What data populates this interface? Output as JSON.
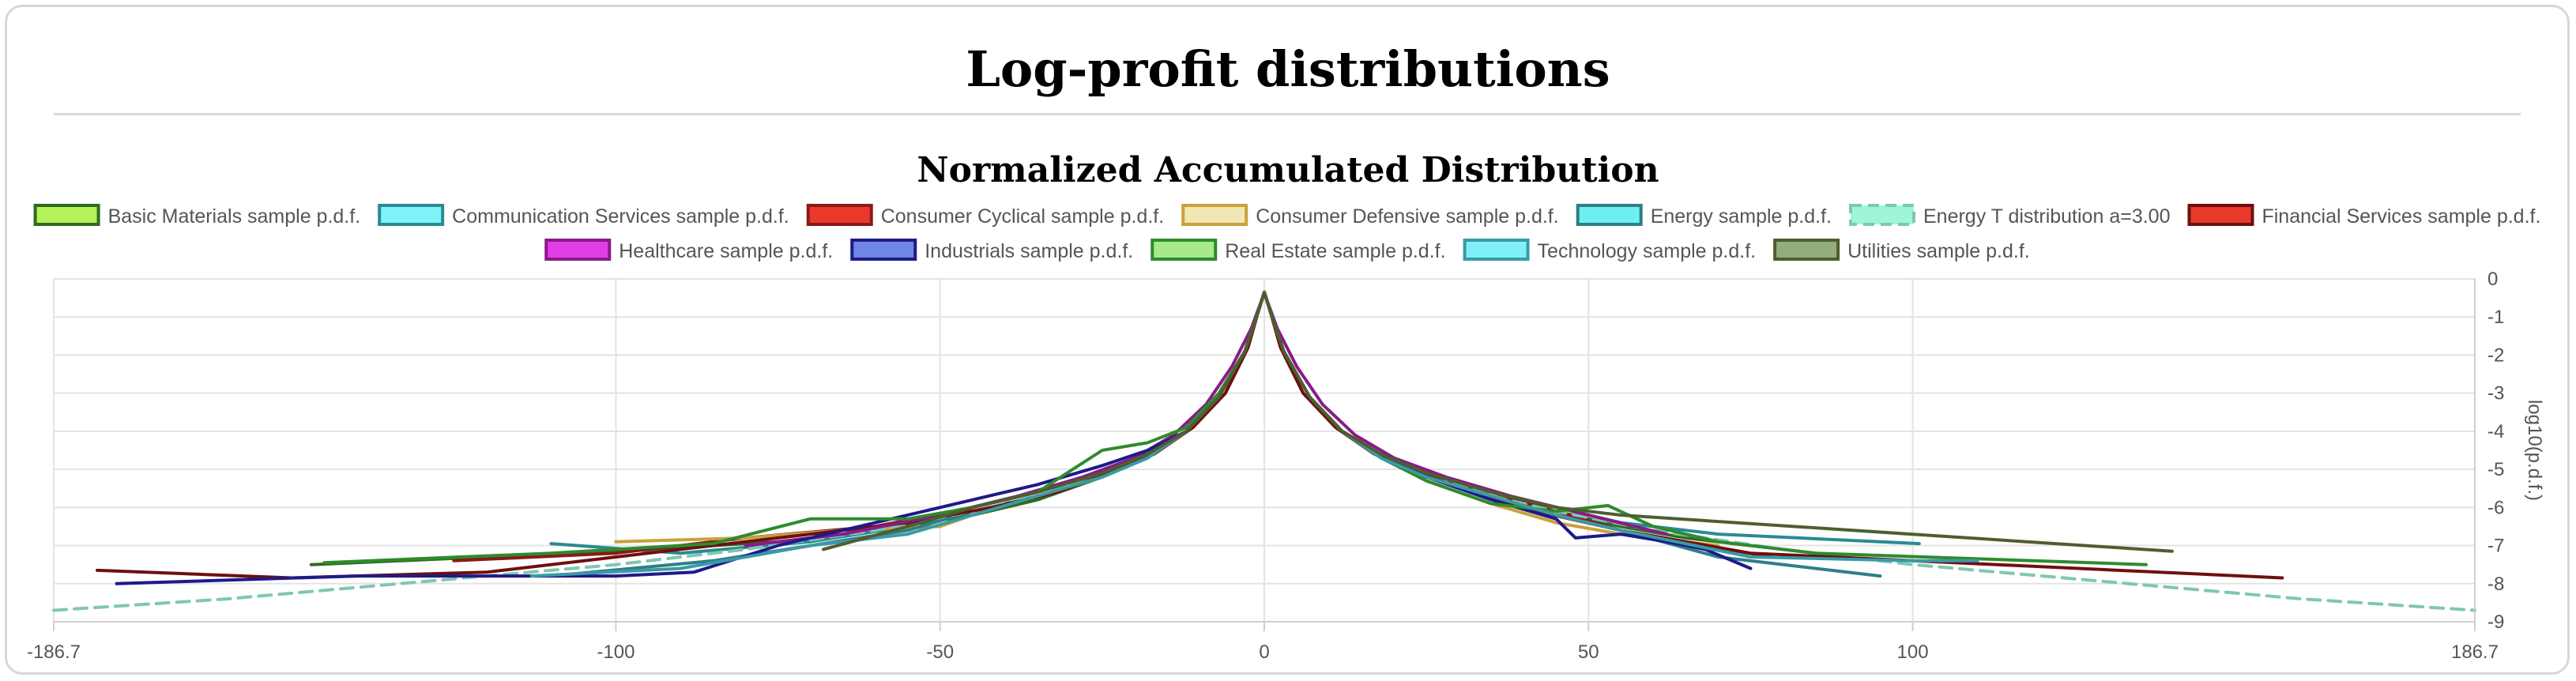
{
  "page": {
    "title": "Log-profit distributions"
  },
  "chart_data": {
    "type": "line",
    "title": "Normalized Accumulated Distribution",
    "xlabel": "",
    "ylabel": "log10(p.d.f.)",
    "xlim": [
      -186.7,
      186.7
    ],
    "ylim": [
      -9,
      0
    ],
    "x_tick_labels": [
      "-186.7",
      "-100",
      "-50",
      "0",
      "50",
      "100",
      "186.7"
    ],
    "x_ticks": [
      -186.7,
      -100,
      -50,
      0,
      50,
      100,
      186.7
    ],
    "y_ticks": [
      0,
      -1,
      -2,
      -3,
      -4,
      -5,
      -6,
      -7,
      -8,
      -9
    ],
    "grid": true,
    "legend_position": "top",
    "series": [
      {
        "name": "Basic Materials sample p.d.f.",
        "color": "#2f6b1f",
        "fill": "#b6f35a",
        "dash": false,
        "x": [
          -147,
          -120,
          -95,
          -75,
          -60,
          -45,
          -35,
          -25,
          -18,
          -12,
          -7,
          -3,
          -1,
          0,
          1,
          3,
          7,
          12,
          18,
          25,
          35,
          45,
          55,
          65,
          75,
          85
        ],
        "y": [
          -7.5,
          -7.3,
          -7.1,
          -6.9,
          -6.6,
          -6.2,
          -5.8,
          -5.2,
          -4.7,
          -4.0,
          -3.1,
          -1.9,
          -0.9,
          -0.35,
          -0.9,
          -1.9,
          -3.1,
          -4.0,
          -4.7,
          -5.2,
          -5.7,
          -6.1,
          -6.5,
          -6.8,
          -7.0,
          -7.2
        ]
      },
      {
        "name": "Communication Services sample p.d.f.",
        "color": "#2a8a94",
        "fill": "#7df3f8",
        "dash": false,
        "x": [
          -110,
          -90,
          -70,
          -55,
          -45,
          -35,
          -25,
          -18,
          -12,
          -7,
          -3,
          -1,
          0,
          1,
          3,
          7,
          12,
          18,
          25,
          35,
          45,
          55,
          70,
          101
        ],
        "y": [
          -6.95,
          -7.2,
          -6.9,
          -6.5,
          -6.0,
          -5.6,
          -5.1,
          -4.6,
          -4.0,
          -3.1,
          -1.9,
          -0.9,
          -0.35,
          -0.9,
          -1.9,
          -3.1,
          -4.0,
          -4.6,
          -5.1,
          -5.6,
          -6.0,
          -6.4,
          -6.7,
          -6.95
        ]
      },
      {
        "name": "Consumer Cyclical sample p.d.f.",
        "color": "#8b1a1a",
        "fill": "#e8392b",
        "dash": false,
        "x": [
          -125,
          -100,
          -80,
          -60,
          -45,
          -35,
          -25,
          -18,
          -12,
          -7,
          -3,
          -1,
          0,
          1,
          3,
          7,
          12,
          18,
          25,
          35,
          45,
          55,
          65,
          78
        ],
        "y": [
          -7.4,
          -7.2,
          -6.8,
          -6.5,
          -6.0,
          -5.6,
          -5.1,
          -4.6,
          -4.0,
          -3.1,
          -1.9,
          -0.9,
          -0.35,
          -0.9,
          -1.9,
          -3.1,
          -4.0,
          -4.6,
          -5.2,
          -5.6,
          -6.1,
          -6.6,
          -6.9,
          -7.3
        ]
      },
      {
        "name": "Consumer Defensive sample p.d.f.",
        "color": "#c9a23a",
        "fill": "#f2e6b4",
        "dash": false,
        "x": [
          -100,
          -80,
          -65,
          -50,
          -40,
          -32,
          -25,
          -18,
          -12,
          -7,
          -3,
          -1,
          0,
          1,
          3,
          7,
          12,
          18,
          25,
          35,
          45,
          55,
          70
        ],
        "y": [
          -6.9,
          -6.8,
          -6.6,
          -6.5,
          -5.9,
          -5.6,
          -5.1,
          -4.6,
          -4.0,
          -3.1,
          -1.9,
          -0.9,
          -0.35,
          -0.9,
          -1.9,
          -3.1,
          -4.0,
          -4.6,
          -5.3,
          -5.9,
          -6.4,
          -6.7,
          -7.0
        ]
      },
      {
        "name": "Energy sample p.d.f.",
        "color": "#2e7f86",
        "fill": "#6ef0f0",
        "dash": false,
        "x": [
          -110,
          -85,
          -70,
          -55,
          -45,
          -35,
          -25,
          -18,
          -12,
          -7,
          -3,
          -1,
          0,
          1,
          3,
          7,
          12,
          18,
          25,
          35,
          45,
          55,
          70,
          95
        ],
        "y": [
          -7.8,
          -7.4,
          -7.0,
          -6.6,
          -6.1,
          -5.7,
          -5.2,
          -4.7,
          -4.0,
          -3.1,
          -1.9,
          -0.9,
          -0.35,
          -0.9,
          -1.9,
          -3.1,
          -4.0,
          -4.7,
          -5.2,
          -5.7,
          -6.2,
          -6.6,
          -7.3,
          -7.8
        ]
      },
      {
        "name": "Energy T distribution a=3.00",
        "color": "#7fc7b0",
        "fill": "#9ff5d8",
        "dash": true,
        "x": [
          -186.7,
          -160,
          -140,
          -120,
          -100,
          -80,
          -60,
          -45,
          -35,
          -25,
          -18,
          -12,
          -7,
          -3,
          -1,
          0,
          1,
          3,
          7,
          12,
          18,
          25,
          35,
          45,
          60,
          80,
          100,
          120,
          140,
          160,
          186.7
        ],
        "y": [
          -8.7,
          -8.4,
          -8.1,
          -7.8,
          -7.5,
          -7.1,
          -6.6,
          -6.1,
          -5.7,
          -5.1,
          -4.6,
          -4.0,
          -3.1,
          -1.9,
          -0.9,
          -0.35,
          -0.9,
          -1.9,
          -3.1,
          -4.0,
          -4.6,
          -5.1,
          -5.7,
          -6.1,
          -6.6,
          -7.1,
          -7.5,
          -7.8,
          -8.1,
          -8.4,
          -8.7
        ]
      },
      {
        "name": "Financial Services sample p.d.f.",
        "color": "#6e0f0f",
        "fill": "#e8392b",
        "dash": false,
        "x": [
          -180,
          -150,
          -120,
          -95,
          -75,
          -55,
          -42,
          -32,
          -24,
          -17,
          -11,
          -6,
          -2.5,
          -1,
          0,
          1,
          2.5,
          6,
          11,
          17,
          24,
          32,
          42,
          55,
          75,
          157
        ],
        "y": [
          -7.65,
          -7.85,
          -7.7,
          -7.2,
          -6.8,
          -6.4,
          -6.0,
          -5.6,
          -5.1,
          -4.6,
          -3.9,
          -3.0,
          -1.8,
          -0.9,
          -0.35,
          -0.9,
          -1.8,
          -3.0,
          -3.9,
          -4.6,
          -5.1,
          -5.6,
          -6.1,
          -6.6,
          -7.2,
          -7.85
        ]
      },
      {
        "name": "Healthcare sample p.d.f.",
        "color": "#8a1a8a",
        "fill": "#e23ee8",
        "dash": false,
        "x": [
          -80,
          -65,
          -50,
          -38,
          -28,
          -20,
          -14,
          -9,
          -5,
          -2,
          -0.5,
          0,
          0.5,
          2,
          5,
          9,
          14,
          20,
          28,
          38,
          50,
          62
        ],
        "y": [
          -7.0,
          -6.7,
          -6.2,
          -5.7,
          -5.2,
          -4.7,
          -4.1,
          -3.3,
          -2.3,
          -1.3,
          -0.6,
          -0.35,
          -0.6,
          -1.3,
          -2.3,
          -3.3,
          -4.1,
          -4.7,
          -5.2,
          -5.7,
          -6.2,
          -6.7
        ]
      },
      {
        "name": "Industrials sample p.d.f.",
        "color": "#1e1a8a",
        "fill": "#6f86e3",
        "dash": false,
        "x": [
          -177,
          -140,
          -100,
          -88,
          -75,
          -60,
          -45,
          -35,
          -25,
          -18,
          -12,
          -7,
          -3,
          -1,
          0,
          1,
          3,
          7,
          12,
          18,
          25,
          35,
          45,
          48,
          55,
          62,
          68,
          75
        ],
        "y": [
          -8.0,
          -7.8,
          -7.8,
          -7.7,
          -7.0,
          -6.4,
          -5.8,
          -5.4,
          -4.9,
          -4.5,
          -4.0,
          -3.1,
          -1.9,
          -0.9,
          -0.35,
          -0.9,
          -1.9,
          -3.1,
          -4.0,
          -4.6,
          -5.2,
          -5.8,
          -6.3,
          -6.8,
          -6.7,
          -6.9,
          -7.1,
          -7.6
        ]
      },
      {
        "name": "Real Estate sample p.d.f.",
        "color": "#2e8b2e",
        "fill": "#a6ea8b",
        "dash": false,
        "x": [
          -145,
          -110,
          -85,
          -70,
          -55,
          -45,
          -35,
          -25,
          -18,
          -12,
          -7,
          -3,
          -1,
          0,
          1,
          3,
          7,
          12,
          18,
          25,
          35,
          45,
          53,
          60,
          70,
          85,
          136
        ],
        "y": [
          -7.45,
          -7.2,
          -6.95,
          -6.3,
          -6.3,
          -6.0,
          -5.6,
          -4.5,
          -4.3,
          -3.9,
          -3.0,
          -1.9,
          -0.9,
          -0.35,
          -0.9,
          -1.9,
          -3.1,
          -4.0,
          -4.7,
          -5.3,
          -5.9,
          -6.1,
          -5.95,
          -6.5,
          -6.9,
          -7.2,
          -7.5
        ]
      },
      {
        "name": "Technology sample p.d.f.",
        "color": "#3a9aa6",
        "fill": "#7ff0f8",
        "dash": false,
        "x": [
          -113,
          -90,
          -70,
          -55,
          -45,
          -35,
          -25,
          -18,
          -12,
          -7,
          -3,
          -1,
          0,
          1,
          3,
          7,
          12,
          18,
          25,
          35,
          45,
          55,
          75,
          100,
          110
        ],
        "y": [
          -7.8,
          -7.6,
          -7.0,
          -6.7,
          -6.2,
          -5.7,
          -5.2,
          -4.7,
          -4.0,
          -3.1,
          -1.9,
          -0.9,
          -0.35,
          -0.9,
          -1.9,
          -3.1,
          -4.0,
          -4.7,
          -5.2,
          -5.7,
          -6.2,
          -6.6,
          -7.3,
          -7.4,
          -7.4
        ]
      },
      {
        "name": "Utilities sample p.d.f.",
        "color": "#4e5e2e",
        "fill": "#93ad7e",
        "dash": false,
        "x": [
          -68,
          -55,
          -45,
          -35,
          -25,
          -18,
          -12,
          -7,
          -3,
          -1,
          0,
          1,
          3,
          7,
          12,
          18,
          25,
          35,
          45,
          55,
          140
        ],
        "y": [
          -7.1,
          -6.5,
          -6.0,
          -5.6,
          -5.1,
          -4.6,
          -4.0,
          -3.1,
          -1.9,
          -0.9,
          -0.35,
          -0.9,
          -1.9,
          -3.1,
          -4.0,
          -4.6,
          -5.1,
          -5.6,
          -6.0,
          -6.2,
          -7.15
        ]
      }
    ]
  }
}
